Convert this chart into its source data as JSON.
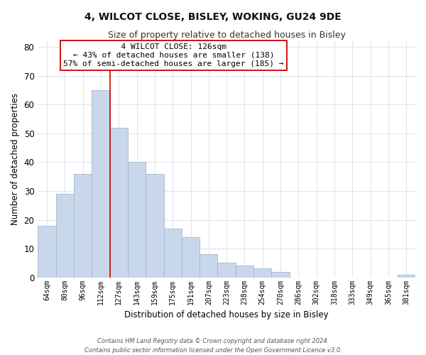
{
  "title": "4, WILCOT CLOSE, BISLEY, WOKING, GU24 9DE",
  "subtitle": "Size of property relative to detached houses in Bisley",
  "xlabel": "Distribution of detached houses by size in Bisley",
  "ylabel": "Number of detached properties",
  "bar_labels": [
    "64sqm",
    "80sqm",
    "96sqm",
    "112sqm",
    "127sqm",
    "143sqm",
    "159sqm",
    "175sqm",
    "191sqm",
    "207sqm",
    "223sqm",
    "238sqm",
    "254sqm",
    "270sqm",
    "286sqm",
    "302sqm",
    "318sqm",
    "333sqm",
    "349sqm",
    "365sqm",
    "381sqm"
  ],
  "bar_values": [
    18,
    29,
    36,
    65,
    52,
    40,
    36,
    17,
    14,
    8,
    5,
    4,
    3,
    2,
    0,
    0,
    0,
    0,
    0,
    0,
    1
  ],
  "bar_color": "#c8d8ea",
  "bar_edge_color": "#a0b8cc",
  "vline_x_index": 3,
  "vline_color": "#cc0000",
  "ylim": [
    0,
    82
  ],
  "yticks": [
    0,
    10,
    20,
    30,
    40,
    50,
    60,
    70,
    80
  ],
  "annotation_title": "4 WILCOT CLOSE: 126sqm",
  "annotation_line1": "← 43% of detached houses are smaller (138)",
  "annotation_line2": "57% of semi-detached houses are larger (185) →",
  "annotation_box_color": "#ffffff",
  "annotation_box_edge": "#cc0000",
  "footer_line1": "Contains HM Land Registry data © Crown copyright and database right 2024.",
  "footer_line2": "Contains public sector information licensed under the Open Government Licence v3.0.",
  "background_color": "#ffffff",
  "grid_color": "#dde5ef"
}
